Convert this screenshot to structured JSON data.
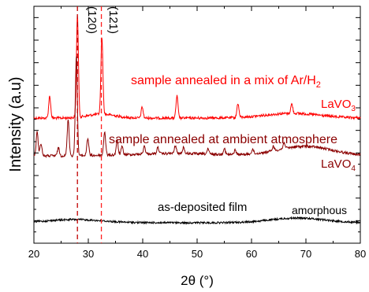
{
  "chart_data": {
    "type": "line",
    "xlabel": "2θ (°)",
    "ylabel": "Intensity (a.u)",
    "xlim": [
      20,
      80
    ],
    "xticks": [
      20,
      30,
      40,
      50,
      60,
      70,
      80
    ],
    "y_ticks_labeled": false,
    "grid": false,
    "legend": "none",
    "reference_lines": [
      {
        "label": "(120)",
        "x": 28.0,
        "color": "#c00000",
        "style": "dashed"
      },
      {
        "label": "(121)",
        "x": 32.4,
        "color": "#ff2020",
        "style": "dashed"
      }
    ],
    "annotations": [
      {
        "text": "sample annealed in a mix of Ar/H",
        "sub": "2",
        "color": "#ff0000"
      },
      {
        "text": "LaVO",
        "sub": "3",
        "color": "#ff0000"
      },
      {
        "text": "sample annealed at ambient atmosphere",
        "sub": "",
        "color": "#8b0000"
      },
      {
        "text": "LaVO",
        "sub": "4",
        "color": "#8b0000"
      },
      {
        "text": "as-deposited film",
        "sub": "",
        "color": "#000000"
      },
      {
        "text": "amorphous",
        "sub": "",
        "color": "#000000"
      }
    ],
    "series": [
      {
        "color": "#ff0000",
        "baseline": 150,
        "peaks": [
          [
            22.9,
            28
          ],
          [
            28.0,
            130
          ],
          [
            32.5,
            98
          ],
          [
            39.9,
            14
          ],
          [
            46.3,
            28
          ],
          [
            57.5,
            18
          ],
          [
            67.4,
            12
          ]
        ],
        "broad": [
          [
            32.4,
            2.5,
            5
          ],
          [
            67.5,
            5,
            6
          ]
        ]
      },
      {
        "color": "#8b0000",
        "baseline": 198,
        "peaks": [
          [
            20.6,
            30
          ],
          [
            21.3,
            16
          ],
          [
            24.5,
            10
          ],
          [
            26.3,
            46
          ],
          [
            27.8,
            128
          ],
          [
            29.9,
            22
          ],
          [
            33.0,
            30
          ],
          [
            35.3,
            18
          ],
          [
            36.2,
            10
          ],
          [
            40.3,
            10
          ],
          [
            42.8,
            8
          ],
          [
            46.0,
            10
          ],
          [
            47.5,
            8
          ],
          [
            52.0,
            6
          ],
          [
            55.0,
            8
          ],
          [
            57.0,
            6
          ],
          [
            60.2,
            6
          ],
          [
            64.0,
            6
          ],
          [
            66.0,
            8
          ]
        ],
        "broad": [
          [
            69.8,
            5,
            12
          ],
          [
            46,
            8,
            3
          ]
        ]
      },
      {
        "color": "#000000",
        "baseline": 283,
        "peaks": [],
        "broad": [
          [
            27.5,
            5,
            4
          ],
          [
            68.5,
            5,
            6
          ]
        ]
      }
    ]
  }
}
